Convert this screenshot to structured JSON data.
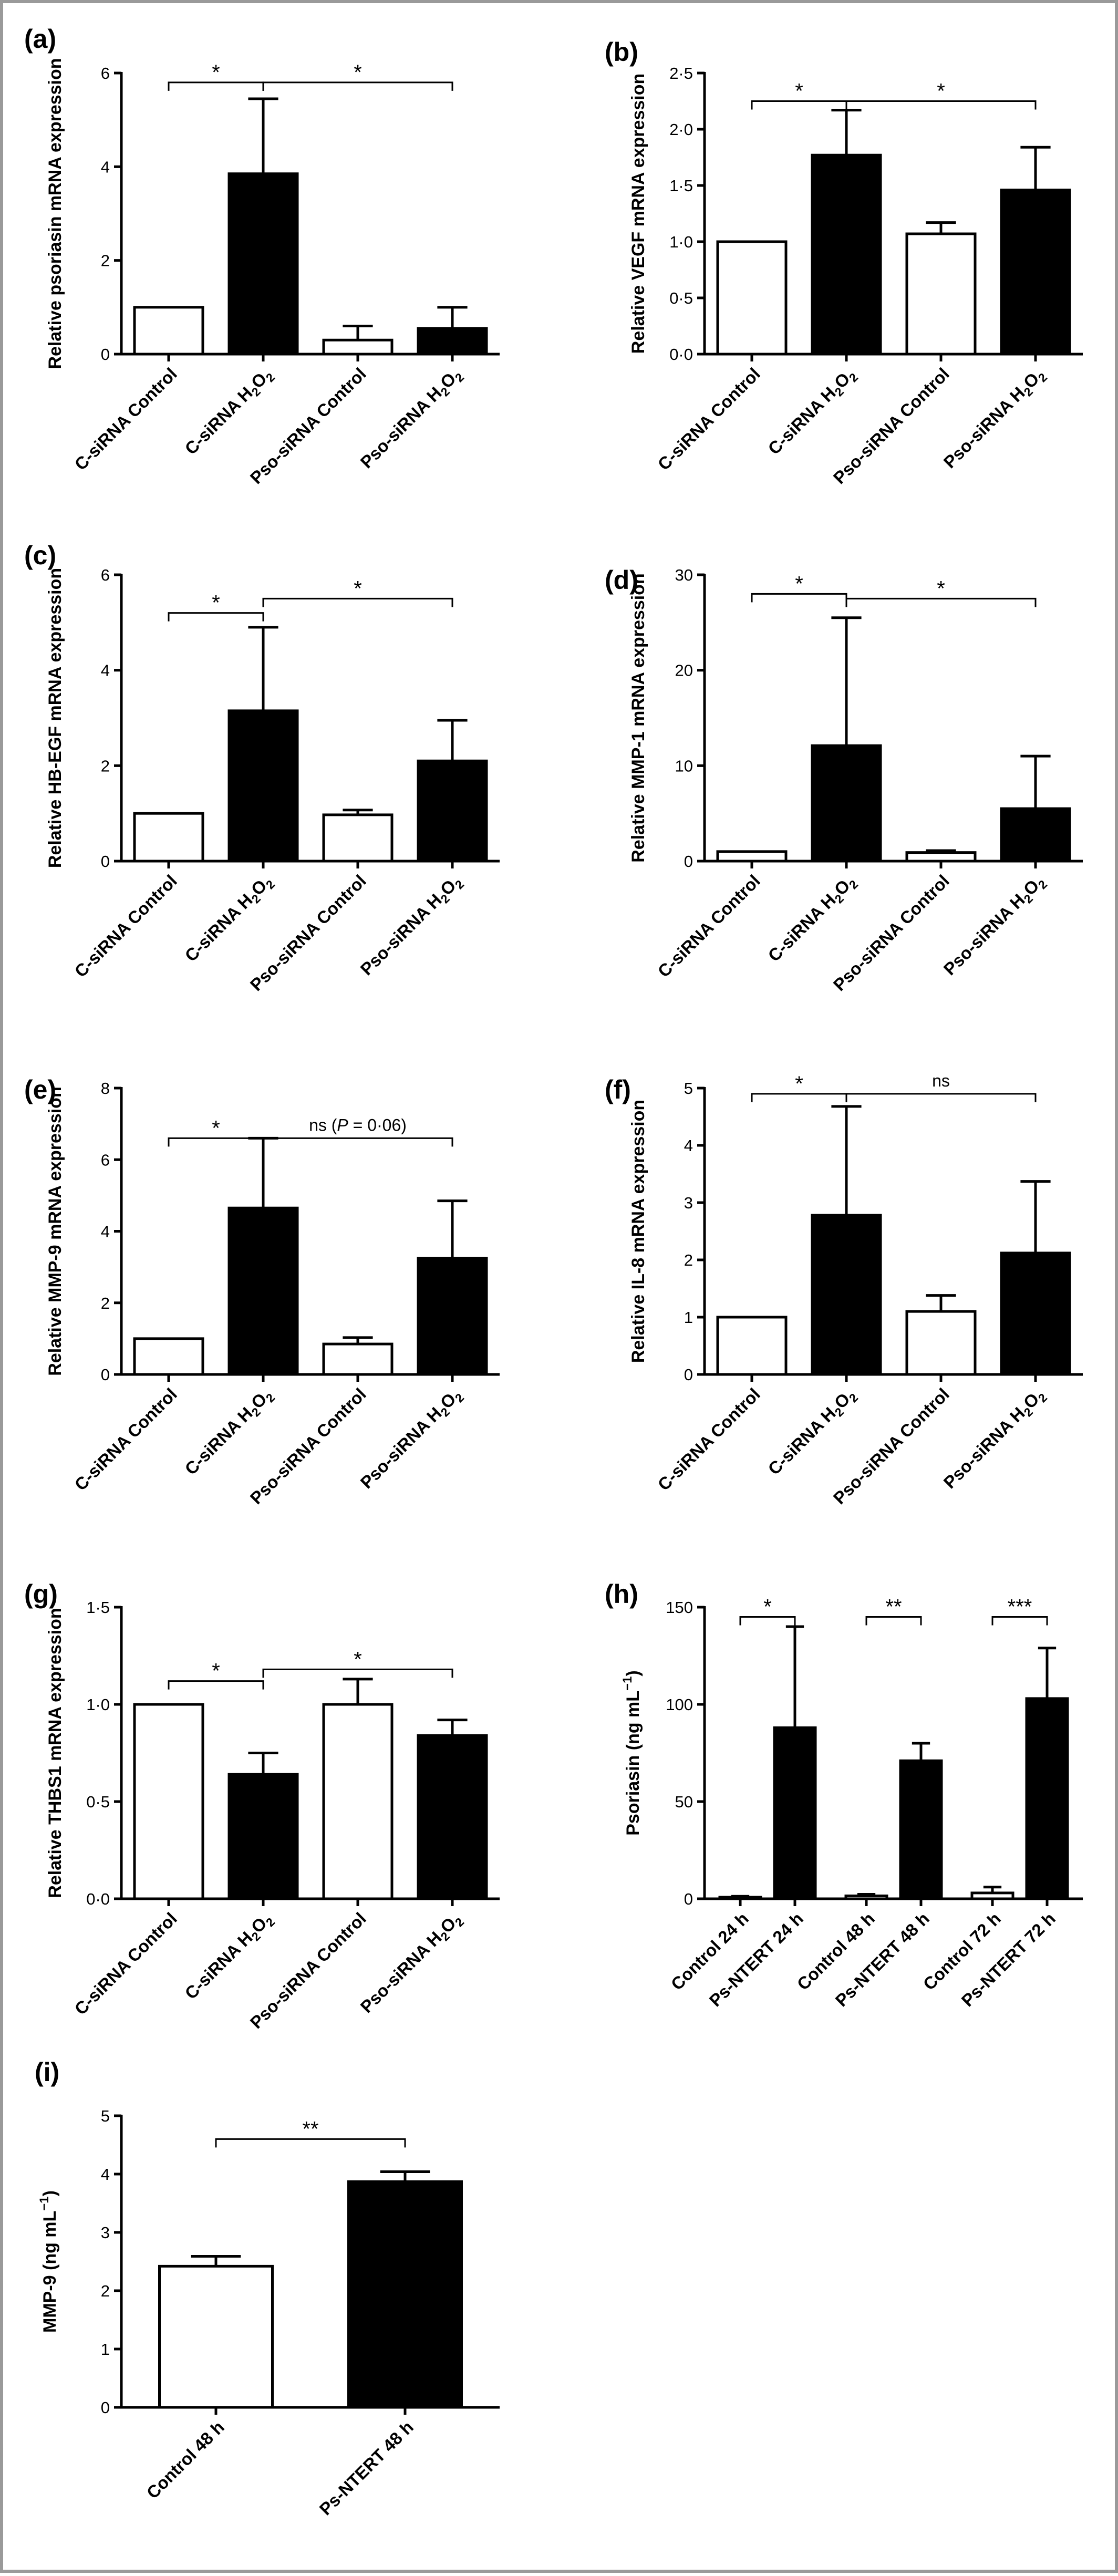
{
  "chart_data": [
    {
      "panel": "(a)",
      "type": "bar",
      "ylabel": "Relative psoriasin mRNA expression",
      "categories": [
        "C-siRNA Control",
        "C-siRNA H₂O₂",
        "Pso-siRNA Control",
        "Pso-siRNA H₂O₂"
      ],
      "values": [
        1.0,
        3.85,
        0.3,
        0.55
      ],
      "errors": [
        0,
        1.6,
        0.3,
        0.45
      ],
      "filled": [
        false,
        true,
        false,
        true
      ],
      "ylim": [
        0,
        6
      ],
      "ticks": [
        0,
        2,
        4,
        6
      ],
      "tick_labels": [
        "0",
        "2",
        "4",
        "6"
      ],
      "significance": [
        {
          "from": 0,
          "to": 1,
          "label": "*",
          "y": 5.8
        },
        {
          "from": 1,
          "to": 3,
          "label": "*",
          "y": 5.8
        }
      ]
    },
    {
      "panel": "(b)",
      "type": "bar",
      "ylabel": "Relative VEGF mRNA expression",
      "categories": [
        "C-siRNA Control",
        "C-siRNA H₂O₂",
        "Pso-siRNA Control",
        "Pso-siRNA H₂O₂"
      ],
      "values": [
        1.0,
        1.77,
        1.07,
        1.46
      ],
      "errors": [
        0,
        0.4,
        0.1,
        0.38
      ],
      "filled": [
        false,
        true,
        false,
        true
      ],
      "ylim": [
        0,
        2.5
      ],
      "ticks": [
        0,
        0.5,
        1.0,
        1.5,
        2.0,
        2.5
      ],
      "tick_labels": [
        "0·0",
        "0·5",
        "1·0",
        "1·5",
        "2·0",
        "2·5"
      ],
      "significance": [
        {
          "from": 0,
          "to": 1,
          "label": "*",
          "y": 2.25
        },
        {
          "from": 1,
          "to": 3,
          "label": "*",
          "y": 2.25
        }
      ]
    },
    {
      "panel": "(c)",
      "type": "bar",
      "ylabel": "Relative HB-EGF mRNA expression",
      "categories": [
        "C-siRNA Control",
        "C-siRNA H₂O₂",
        "Pso-siRNA Control",
        "Pso-siRNA H₂O₂"
      ],
      "values": [
        1.0,
        3.15,
        0.97,
        2.1
      ],
      "errors": [
        0,
        1.75,
        0.1,
        0.85
      ],
      "filled": [
        false,
        true,
        false,
        true
      ],
      "ylim": [
        0,
        6
      ],
      "ticks": [
        0,
        2,
        4,
        6
      ],
      "tick_labels": [
        "0",
        "2",
        "4",
        "6"
      ],
      "significance": [
        {
          "from": 0,
          "to": 1,
          "label": "*",
          "y": 5.2
        },
        {
          "from": 1,
          "to": 3,
          "label": "*",
          "y": 5.5
        }
      ]
    },
    {
      "panel": "(d)",
      "type": "bar",
      "ylabel": "Relative MMP-1 mRNA expression",
      "categories": [
        "C-siRNA Control",
        "C-siRNA H₂O₂",
        "Pso-siRNA Control",
        "Pso-siRNA H₂O₂"
      ],
      "values": [
        1.0,
        12.1,
        0.9,
        5.5
      ],
      "errors": [
        0,
        13.4,
        0.2,
        5.5
      ],
      "filled": [
        false,
        true,
        false,
        true
      ],
      "ylim": [
        0,
        30
      ],
      "ticks": [
        0,
        10,
        20,
        30
      ],
      "tick_labels": [
        "0",
        "10",
        "20",
        "30"
      ],
      "significance": [
        {
          "from": 0,
          "to": 1,
          "label": "*",
          "y": 28
        },
        {
          "from": 1,
          "to": 3,
          "label": "*",
          "y": 27.5
        }
      ]
    },
    {
      "panel": "(e)",
      "type": "bar",
      "ylabel": "Relative MMP-9 mRNA expression",
      "categories": [
        "C-siRNA Control",
        "C-siRNA H₂O₂",
        "Pso-siRNA Control",
        "Pso-siRNA H₂O₂"
      ],
      "values": [
        1.0,
        4.65,
        0.85,
        3.25
      ],
      "errors": [
        0,
        1.95,
        0.18,
        1.6
      ],
      "filled": [
        false,
        true,
        false,
        true
      ],
      "ylim": [
        0,
        8
      ],
      "ticks": [
        0,
        2,
        4,
        6,
        8
      ],
      "tick_labels": [
        "0",
        "2",
        "4",
        "6",
        "8"
      ],
      "significance": [
        {
          "from": 0,
          "to": 1,
          "label": "*",
          "y": 6.6
        },
        {
          "from": 1,
          "to": 3,
          "label": "ns (P = 0·06)",
          "y": 6.6
        }
      ]
    },
    {
      "panel": "(f)",
      "type": "bar",
      "ylabel": "Relative IL-8 mRNA expression",
      "categories": [
        "C-siRNA Control",
        "C-siRNA H₂O₂",
        "Pso-siRNA Control",
        "Pso-siRNA H₂O₂"
      ],
      "values": [
        1.0,
        2.78,
        1.1,
        2.12
      ],
      "errors": [
        0,
        1.9,
        0.28,
        1.25
      ],
      "filled": [
        false,
        true,
        false,
        true
      ],
      "ylim": [
        0,
        5
      ],
      "ticks": [
        0,
        1,
        2,
        3,
        4,
        5
      ],
      "tick_labels": [
        "0",
        "1",
        "2",
        "3",
        "4",
        "5"
      ],
      "significance": [
        {
          "from": 0,
          "to": 1,
          "label": "*",
          "y": 4.9
        },
        {
          "from": 1,
          "to": 3,
          "label": "ns",
          "y": 4.9
        }
      ]
    },
    {
      "panel": "(g)",
      "type": "bar",
      "ylabel": "Relative THBS1 mRNA expression",
      "categories": [
        "C-siRNA Control",
        "C-siRNA H₂O₂",
        "Pso-siRNA Control",
        "Pso-siRNA H₂O₂"
      ],
      "values": [
        1.0,
        0.64,
        1.0,
        0.84
      ],
      "errors": [
        0,
        0.11,
        0.13,
        0.08
      ],
      "filled": [
        false,
        true,
        false,
        true
      ],
      "ylim": [
        0,
        1.5
      ],
      "ticks": [
        0,
        0.5,
        1.0,
        1.5
      ],
      "tick_labels": [
        "0·0",
        "0·5",
        "1·0",
        "1·5"
      ],
      "significance": [
        {
          "from": 0,
          "to": 1,
          "label": "*",
          "y": 1.12
        },
        {
          "from": 1,
          "to": 3,
          "label": "*",
          "y": 1.18
        }
      ]
    },
    {
      "panel": "(h)",
      "type": "bar",
      "ylabel": "Psoriasin (ng mL⁻¹)",
      "categories": [
        "Control 24 h",
        "Ps-NTERT 24 h",
        "Control 48 h",
        "Ps-NTERT 48 h",
        "Control 72 h",
        "Ps-NTERT 72 h"
      ],
      "values": [
        0.8,
        88,
        1.5,
        71,
        3,
        103
      ],
      "errors": [
        0.5,
        52,
        0.8,
        9,
        3,
        26
      ],
      "filled": [
        false,
        true,
        false,
        true,
        false,
        true
      ],
      "ylim": [
        0,
        150
      ],
      "ticks": [
        0,
        50,
        100,
        150
      ],
      "tick_labels": [
        "0",
        "50",
        "100",
        "150"
      ],
      "significance": [
        {
          "from": 0,
          "to": 1,
          "label": "*",
          "y": 145
        },
        {
          "from": 2,
          "to": 3,
          "label": "**",
          "y": 145
        },
        {
          "from": 4,
          "to": 5,
          "label": "***",
          "y": 145
        }
      ]
    },
    {
      "panel": "(i)",
      "type": "bar",
      "ylabel": "MMP-9 (ng mL⁻¹)",
      "categories": [
        "Control 48 h",
        "Ps-NTERT 48 h"
      ],
      "values": [
        2.42,
        3.87
      ],
      "errors": [
        0.17,
        0.17
      ],
      "filled": [
        false,
        true
      ],
      "ylim": [
        0,
        5
      ],
      "ticks": [
        0,
        1,
        2,
        3,
        4,
        5
      ],
      "tick_labels": [
        "0",
        "1",
        "2",
        "3",
        "4",
        "5"
      ],
      "significance": [
        {
          "from": 0,
          "to": 1,
          "label": "**",
          "y": 4.6
        }
      ]
    }
  ]
}
